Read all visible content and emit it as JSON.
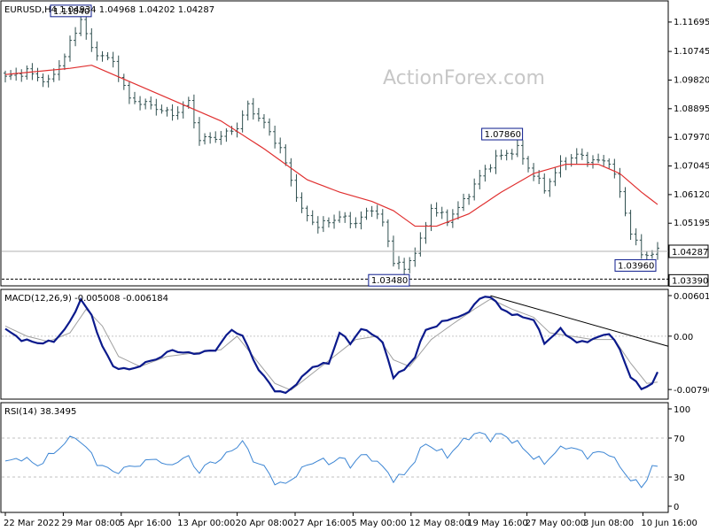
{
  "watermark": "ActionForex.com",
  "colors": {
    "price": "#2f4f4f",
    "sma": "#e03030",
    "macd": "#0b1a8c",
    "signal": "#a0a0a0",
    "rsi": "#3d86d4",
    "trendline": "#000000",
    "label_border": "#0b1a8c"
  },
  "chart_data": [
    {
      "type": "candlestick",
      "title": "EURUSD,H4  1.04934 1.04968 1.04202 1.04287",
      "yticks": [
        "1.11695",
        "1.10745",
        "1.09820",
        "1.08895",
        "1.07970",
        "1.07045",
        "1.06120",
        "1.05195"
      ],
      "current_price": "1.04287",
      "support_label": "1.03390",
      "ylim": [
        1.032,
        1.1235
      ],
      "annotations": [
        {
          "text": "1.11840",
          "x": 12,
          "y": 1.1184
        },
        {
          "text": "1.07860",
          "x": 92,
          "y": 1.0786
        },
        {
          "text": "1.03480",
          "x": 71,
          "y": 1.0348
        },
        {
          "text": "1.03960",
          "x": 118,
          "y": 1.0396
        }
      ],
      "close_keypoints": [
        [
          0,
          1.099
        ],
        [
          4,
          1.101
        ],
        [
          8,
          1.0975
        ],
        [
          11,
          1.106
        ],
        [
          14,
          1.118
        ],
        [
          16,
          1.108
        ],
        [
          20,
          1.104
        ],
        [
          23,
          1.092
        ],
        [
          27,
          1.09
        ],
        [
          31,
          1.087
        ],
        [
          34,
          1.091
        ],
        [
          36,
          1.079
        ],
        [
          40,
          1.08
        ],
        [
          43,
          1.083
        ],
        [
          45,
          1.09
        ],
        [
          48,
          1.084
        ],
        [
          51,
          1.076
        ],
        [
          55,
          1.056
        ],
        [
          58,
          1.051
        ],
        [
          62,
          1.054
        ],
        [
          65,
          1.052
        ],
        [
          68,
          1.057
        ],
        [
          70,
          1.052
        ],
        [
          72,
          1.04
        ],
        [
          74,
          1.037
        ],
        [
          77,
          1.046
        ],
        [
          79,
          1.057
        ],
        [
          82,
          1.053
        ],
        [
          85,
          1.059
        ],
        [
          88,
          1.067
        ],
        [
          91,
          1.073
        ],
        [
          95,
          1.076
        ],
        [
          97,
          1.07
        ],
        [
          100,
          1.063
        ],
        [
          103,
          1.071
        ],
        [
          106,
          1.074
        ],
        [
          109,
          1.072
        ],
        [
          112,
          1.072
        ],
        [
          114,
          1.062
        ],
        [
          116,
          1.049
        ],
        [
          118,
          1.042
        ],
        [
          120,
          1.042
        ],
        [
          121,
          1.043
        ]
      ],
      "sma_keypoints": [
        [
          0,
          1.1
        ],
        [
          12,
          1.102
        ],
        [
          16,
          1.103
        ],
        [
          24,
          1.097
        ],
        [
          32,
          1.091
        ],
        [
          40,
          1.085
        ],
        [
          48,
          1.076
        ],
        [
          56,
          1.066
        ],
        [
          62,
          1.062
        ],
        [
          68,
          1.059
        ],
        [
          72,
          1.056
        ],
        [
          76,
          1.051
        ],
        [
          80,
          1.051
        ],
        [
          86,
          1.055
        ],
        [
          92,
          1.062
        ],
        [
          98,
          1.068
        ],
        [
          104,
          1.071
        ],
        [
          110,
          1.071
        ],
        [
          114,
          1.068
        ],
        [
          118,
          1.062
        ],
        [
          121,
          1.058
        ]
      ]
    },
    {
      "type": "line",
      "title": "MACD(12,26,9) -0.005008 -0.006184",
      "yticks": [
        "0.006012",
        "0.00",
        "-0.007907"
      ],
      "ylim": [
        -0.0092,
        0.0068
      ],
      "macd_keypoints": [
        [
          0,
          0.001
        ],
        [
          3,
          -0.0005
        ],
        [
          6,
          -0.001
        ],
        [
          9,
          -0.0008
        ],
        [
          12,
          0.002
        ],
        [
          14,
          0.0055
        ],
        [
          16,
          0.003
        ],
        [
          18,
          -0.0015
        ],
        [
          20,
          -0.0045
        ],
        [
          23,
          -0.005
        ],
        [
          26,
          -0.004
        ],
        [
          29,
          -0.003
        ],
        [
          31,
          -0.002
        ],
        [
          33,
          -0.0025
        ],
        [
          36,
          -0.0025
        ],
        [
          39,
          -0.002
        ],
        [
          42,
          0.001
        ],
        [
          44,
          0.0
        ],
        [
          47,
          -0.005
        ],
        [
          50,
          -0.008
        ],
        [
          52,
          -0.0085
        ],
        [
          54,
          -0.007
        ],
        [
          57,
          -0.0045
        ],
        [
          60,
          -0.004
        ],
        [
          62,
          0.0005
        ],
        [
          64,
          -0.001
        ],
        [
          66,
          0.001
        ],
        [
          68,
          0.0005
        ],
        [
          70,
          -0.001
        ],
        [
          72,
          -0.006
        ],
        [
          74,
          -0.005
        ],
        [
          76,
          -0.003
        ],
        [
          78,
          0.001
        ],
        [
          80,
          0.0015
        ],
        [
          82,
          0.0025
        ],
        [
          85,
          0.003
        ],
        [
          88,
          0.0055
        ],
        [
          90,
          0.006
        ],
        [
          92,
          0.004
        ],
        [
          95,
          0.003
        ],
        [
          98,
          0.0025
        ],
        [
          100,
          -0.001
        ],
        [
          103,
          0.001
        ],
        [
          106,
          -0.001
        ],
        [
          109,
          -0.0005
        ],
        [
          112,
          0.0005
        ],
        [
          114,
          -0.002
        ],
        [
          116,
          -0.006
        ],
        [
          118,
          -0.0078
        ],
        [
          120,
          -0.007
        ],
        [
          121,
          -0.0055
        ]
      ],
      "signal_keypoints": [
        [
          0,
          0.0015
        ],
        [
          4,
          0.0
        ],
        [
          8,
          -0.0008
        ],
        [
          12,
          0.0005
        ],
        [
          15,
          0.004
        ],
        [
          18,
          0.0015
        ],
        [
          21,
          -0.003
        ],
        [
          25,
          -0.0045
        ],
        [
          30,
          -0.003
        ],
        [
          35,
          -0.0025
        ],
        [
          40,
          -0.002
        ],
        [
          43,
          0.0
        ],
        [
          46,
          -0.003
        ],
        [
          50,
          -0.007
        ],
        [
          53,
          -0.008
        ],
        [
          57,
          -0.0055
        ],
        [
          61,
          -0.003
        ],
        [
          65,
          -0.0005
        ],
        [
          69,
          0.0
        ],
        [
          72,
          -0.0035
        ],
        [
          75,
          -0.0045
        ],
        [
          79,
          -0.0005
        ],
        [
          83,
          0.0018
        ],
        [
          87,
          0.004
        ],
        [
          90,
          0.0055
        ],
        [
          94,
          0.004
        ],
        [
          98,
          0.0028
        ],
        [
          101,
          0.0005
        ],
        [
          105,
          0.0
        ],
        [
          109,
          -0.0005
        ],
        [
          113,
          -0.0005
        ],
        [
          116,
          -0.004
        ],
        [
          119,
          -0.007
        ],
        [
          121,
          -0.0068
        ]
      ],
      "trendline": [
        [
          90,
          0.006
        ],
        [
          128,
          -0.0015
        ]
      ]
    },
    {
      "type": "line",
      "title": "RSI(14) 38.3495",
      "yticks": [
        "100",
        "70",
        "30",
        "0"
      ],
      "ylim": [
        0,
        100
      ],
      "rsi_keypoints": [
        [
          0,
          45
        ],
        [
          3,
          50
        ],
        [
          6,
          42
        ],
        [
          9,
          55
        ],
        [
          11,
          65
        ],
        [
          13,
          72
        ],
        [
          15,
          60
        ],
        [
          17,
          45
        ],
        [
          20,
          35
        ],
        [
          23,
          40
        ],
        [
          26,
          45
        ],
        [
          28,
          50
        ],
        [
          30,
          40
        ],
        [
          32,
          47
        ],
        [
          34,
          50
        ],
        [
          36,
          35
        ],
        [
          38,
          45
        ],
        [
          40,
          48
        ],
        [
          42,
          58
        ],
        [
          44,
          66
        ],
        [
          46,
          48
        ],
        [
          48,
          40
        ],
        [
          50,
          25
        ],
        [
          52,
          22
        ],
        [
          54,
          33
        ],
        [
          56,
          42
        ],
        [
          58,
          48
        ],
        [
          60,
          44
        ],
        [
          62,
          50
        ],
        [
          64,
          42
        ],
        [
          66,
          52
        ],
        [
          68,
          50
        ],
        [
          70,
          40
        ],
        [
          72,
          28
        ],
        [
          74,
          32
        ],
        [
          76,
          48
        ],
        [
          78,
          65
        ],
        [
          80,
          58
        ],
        [
          82,
          52
        ],
        [
          84,
          62
        ],
        [
          86,
          72
        ],
        [
          88,
          75
        ],
        [
          90,
          70
        ],
        [
          92,
          74
        ],
        [
          94,
          68
        ],
        [
          96,
          60
        ],
        [
          98,
          50
        ],
        [
          100,
          45
        ],
        [
          102,
          55
        ],
        [
          104,
          62
        ],
        [
          106,
          58
        ],
        [
          108,
          52
        ],
        [
          110,
          55
        ],
        [
          112,
          55
        ],
        [
          114,
          40
        ],
        [
          116,
          28
        ],
        [
          118,
          20
        ],
        [
          119,
          28
        ],
        [
          120,
          42
        ],
        [
          121,
          38
        ]
      ]
    }
  ],
  "x_labels": [
    "22 Mar 2022",
    "29 Mar 08:00",
    "5 Apr 16:00",
    "13 Apr 00:00",
    "20 Apr 08:00",
    "27 Apr 16:00",
    "5 May 00:00",
    "12 May 08:00",
    "19 May 16:00",
    "27 May 00:00",
    "3 Jun 08:00",
    "10 Jun 16:00"
  ]
}
